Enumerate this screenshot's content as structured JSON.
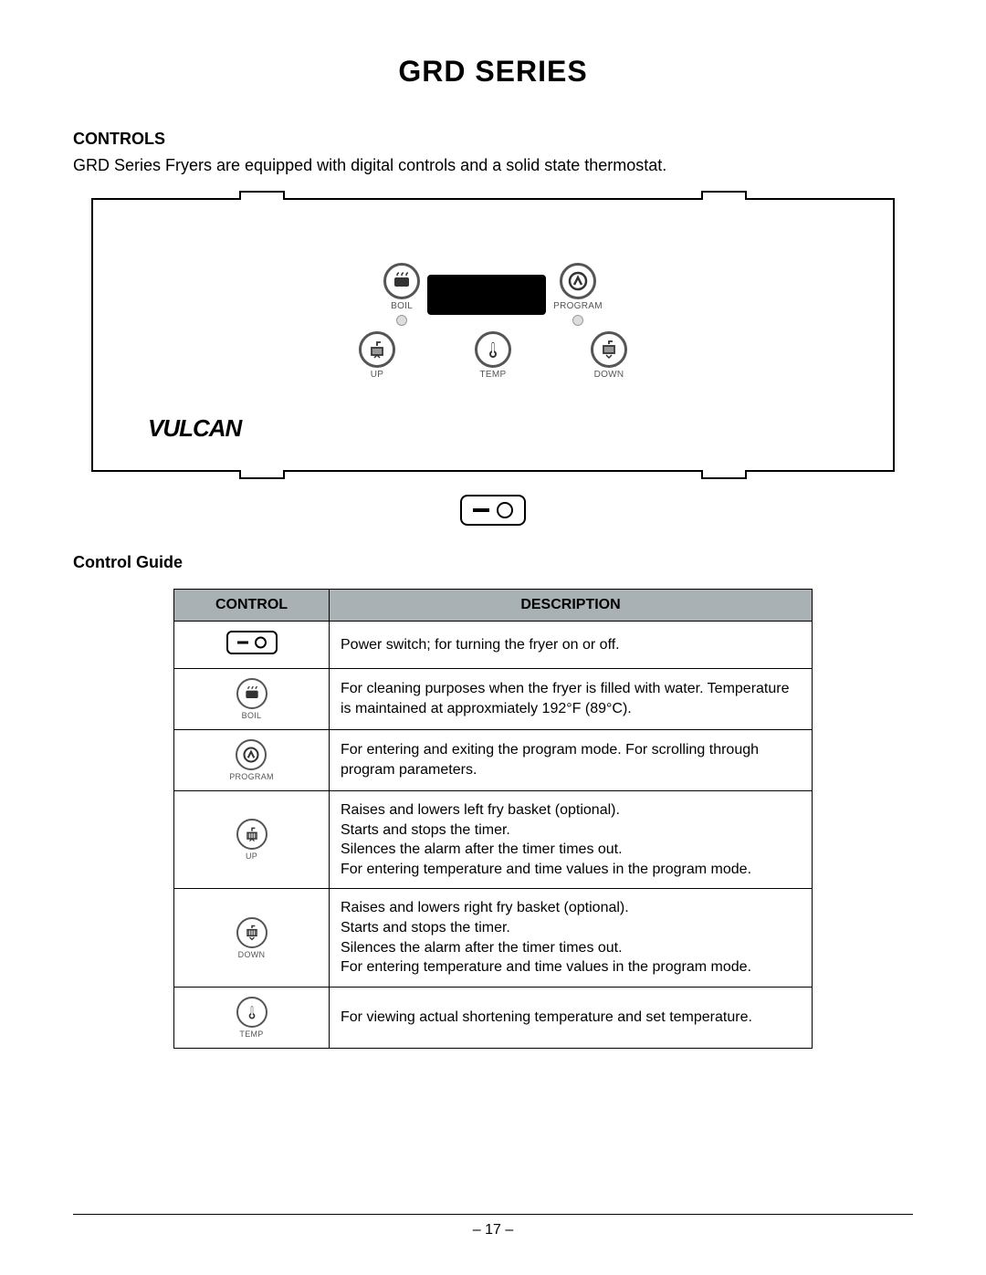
{
  "title": "GRD SERIES",
  "controls_heading": "CONTROLS",
  "intro": "GRD Series Fryers are equipped with digital controls and a solid state thermostat.",
  "panel": {
    "brand": "VULCAN",
    "buttons": {
      "boil": "BOIL",
      "program": "PROGRAM",
      "up": "UP",
      "temp": "TEMP",
      "down": "DOWN"
    }
  },
  "guide_heading": "Control Guide",
  "table": {
    "headers": {
      "control": "CONTROL",
      "description": "DESCRIPTION"
    },
    "rows": [
      {
        "icon": "power",
        "label": "",
        "desc": "Power switch; for turning the fryer on or off."
      },
      {
        "icon": "boil",
        "label": "BOIL",
        "desc": "For cleaning purposes when the fryer is filled with water. Temperature is maintained at approxmiately 192°F (89°C)."
      },
      {
        "icon": "program",
        "label": "PROGRAM",
        "desc": "For entering and exiting the program mode. For scrolling through program parameters."
      },
      {
        "icon": "up",
        "label": "UP",
        "desc": "Raises and lowers left fry basket (optional).\nStarts and stops the timer.\nSilences the alarm after the timer times out.\nFor entering temperature and time values in the program mode."
      },
      {
        "icon": "down",
        "label": "DOWN",
        "desc": "Raises and lowers right fry basket (optional).\nStarts and stops the timer.\nSilences the alarm after the timer times out.\nFor entering temperature and time values in the program mode."
      },
      {
        "icon": "temp",
        "label": "TEMP",
        "desc": "For viewing actual shortening temperature and set temperature."
      }
    ]
  },
  "page_number": "– 17 –",
  "colors": {
    "header_bg": "#a9b1b4",
    "text": "#000000",
    "icon_stroke": "#555555"
  }
}
